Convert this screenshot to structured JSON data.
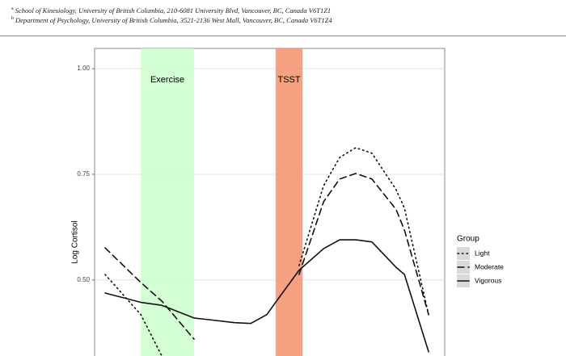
{
  "header": {
    "affiliations": [
      {
        "mark": "a",
        "text": "School of Kinesiology, University of British Columbia, 210-6081 University Blvd, Vancouver, BC, Canada V6T1Z1"
      },
      {
        "mark": "b",
        "text": "Department of Psychology, University of British Columbia, 3521-2136 West Mall, Vancouver, BC, Canada V6T1Z4"
      }
    ]
  },
  "chart_data": {
    "type": "line",
    "y_label": "Log Cortisol",
    "x": [
      3,
      13.2,
      19.2,
      28.4,
      40,
      44.6,
      49.2,
      51.7,
      58.4,
      65.4,
      70,
      74.6,
      79.2,
      86.1,
      88.5,
      95.4
    ],
    "xlim": [
      0,
      100
    ],
    "ylim": [
      0.32,
      1.048
    ],
    "yticks": [
      {
        "value": 0.5,
        "label": "0.50"
      },
      {
        "value": 0.75,
        "label": "0.75"
      },
      {
        "value": 1,
        "label": "1.00"
      }
    ],
    "grid": true,
    "annotations": [
      {
        "label": "Exercise",
        "x": [
          13.2,
          28.4
        ],
        "color": "#ccffcc"
      },
      {
        "label": "TSST",
        "x": [
          51.7,
          59.4
        ],
        "color": "#f4916b"
      }
    ],
    "legend_title": "Group",
    "legend_position": "right",
    "series": [
      {
        "name": "Light",
        "color": "#111111",
        "dash": "1.5,4",
        "values": [
          0.513,
          0.418,
          0.32,
          null,
          null,
          null,
          null,
          null,
          0.534,
          0.723,
          0.79,
          0.813,
          0.8,
          0.714,
          0.67,
          0.418
        ]
      },
      {
        "name": "Moderate",
        "color": "#111111",
        "dash": "8,5",
        "values": [
          0.576,
          0.494,
          0.45,
          0.36,
          null,
          null,
          null,
          null,
          0.513,
          0.685,
          0.739,
          0.752,
          0.739,
          0.667,
          0.618,
          0.418
        ]
      },
      {
        "name": "Vigorous",
        "color": "#111111",
        "dash": "none",
        "values": [
          0.469,
          0.447,
          0.44,
          0.41,
          0.399,
          0.397,
          0.418,
          0.447,
          0.523,
          0.574,
          0.595,
          0.595,
          0.59,
          0.53,
          0.513,
          0.33
        ]
      }
    ]
  }
}
